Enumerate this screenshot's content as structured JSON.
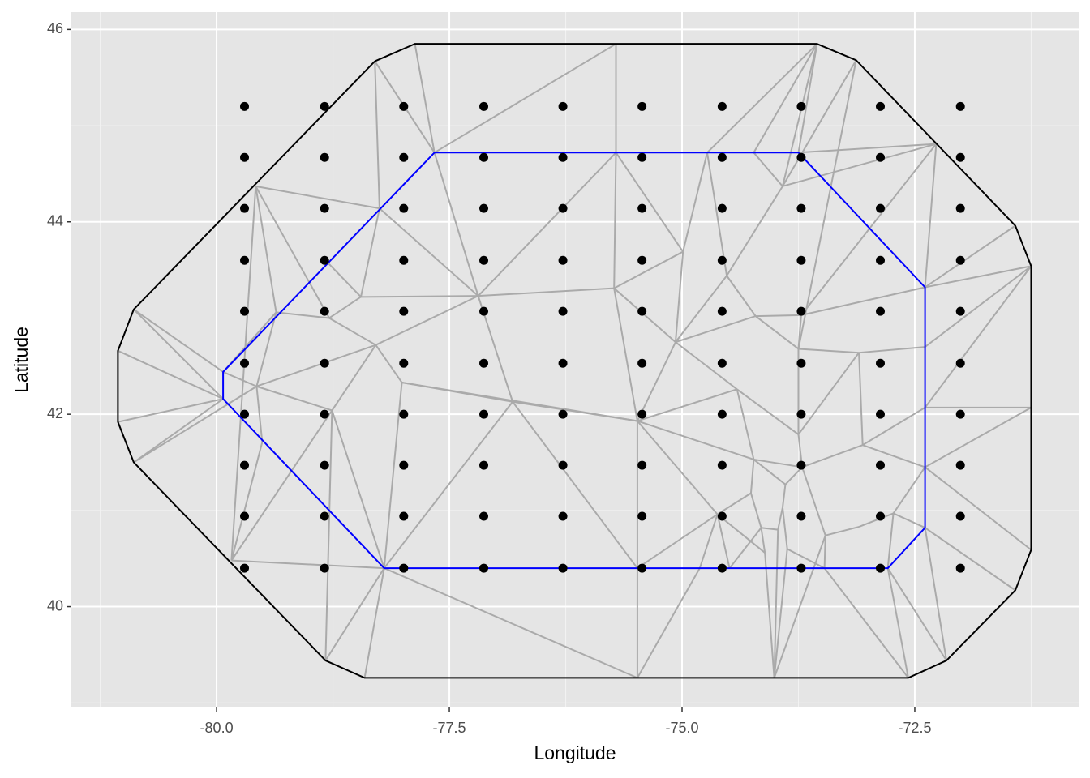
{
  "chart_data": {
    "type": "scatter",
    "x_label": "Longitude",
    "y_label": "Latitude",
    "xlim": [
      -81.56,
      -70.74
    ],
    "ylim": [
      38.96,
      46.18
    ],
    "xticks": [
      {
        "value": -80,
        "label": "-80.0"
      },
      -77.5,
      {
        "value": -75,
        "label": "-75.0"
      },
      -72.5
    ],
    "yticks": [
      40,
      42,
      44,
      46
    ],
    "xminor": [
      -81.25,
      -78.75,
      -76.25,
      -73.75,
      -71.25
    ],
    "yminor": [
      39,
      41,
      43,
      45
    ],
    "grid": true,
    "points": {
      "color": "#000000",
      "x": [
        -79.7,
        -78.84,
        -77.99,
        -77.13,
        -76.28,
        -75.43,
        -74.57,
        -73.72,
        -72.87,
        -72.01,
        -79.7,
        -78.84,
        -77.99,
        -77.13,
        -76.28,
        -75.43,
        -74.57,
        -73.72,
        -72.87,
        -72.01,
        -79.7,
        -78.84,
        -77.99,
        -77.13,
        -76.28,
        -75.43,
        -74.57,
        -73.72,
        -72.87,
        -72.01,
        -79.7,
        -78.84,
        -77.99,
        -77.13,
        -76.28,
        -75.43,
        -74.57,
        -73.72,
        -72.87,
        -72.01,
        -79.7,
        -78.84,
        -77.99,
        -77.13,
        -76.28,
        -75.43,
        -74.57,
        -73.72,
        -72.87,
        -72.01,
        -79.7,
        -78.84,
        -77.99,
        -77.13,
        -76.28,
        -75.43,
        -74.57,
        -73.72,
        -72.87,
        -72.01,
        -79.7,
        -78.84,
        -77.99,
        -77.13,
        -76.28,
        -75.43,
        -74.57,
        -73.72,
        -72.87,
        -72.01,
        -79.7,
        -78.84,
        -77.99,
        -77.13,
        -76.28,
        -75.43,
        -74.57,
        -73.72,
        -72.87,
        -72.01,
        -79.7,
        -78.84,
        -77.99,
        -77.13,
        -76.28,
        -75.43,
        -74.57,
        -73.72,
        -72.87,
        -72.01,
        -79.7,
        -78.84,
        -77.99,
        -77.13,
        -76.28,
        -75.43,
        -74.57,
        -73.72,
        -72.87,
        -72.01
      ],
      "y": [
        45.2,
        45.2,
        45.2,
        45.2,
        45.2,
        45.2,
        45.2,
        45.2,
        45.2,
        45.2,
        44.67,
        44.67,
        44.67,
        44.67,
        44.67,
        44.67,
        44.67,
        44.67,
        44.67,
        44.67,
        44.14,
        44.14,
        44.14,
        44.14,
        44.14,
        44.14,
        44.14,
        44.14,
        44.14,
        44.14,
        43.6,
        43.6,
        43.6,
        43.6,
        43.6,
        43.6,
        43.6,
        43.6,
        43.6,
        43.6,
        43.07,
        43.07,
        43.07,
        43.07,
        43.07,
        43.07,
        43.07,
        43.07,
        43.07,
        43.07,
        42.53,
        42.53,
        42.53,
        42.53,
        42.53,
        42.53,
        42.53,
        42.53,
        42.53,
        42.53,
        42.0,
        42.0,
        42.0,
        42.0,
        42.0,
        42.0,
        42.0,
        42.0,
        42.0,
        42.0,
        41.47,
        41.47,
        41.47,
        41.47,
        41.47,
        41.47,
        41.47,
        41.47,
        41.47,
        41.47,
        40.94,
        40.94,
        40.94,
        40.94,
        40.94,
        40.94,
        40.94,
        40.94,
        40.94,
        40.94,
        40.4,
        40.4,
        40.4,
        40.4,
        40.4,
        40.4,
        40.4,
        40.4,
        40.4,
        40.4
      ]
    },
    "mesh": {
      "color": "#aaaaaa",
      "x": [
        -78.3,
        -77.87,
        -73.55,
        -73.13,
        -71.42,
        -71.25,
        -71.25,
        -71.42,
        -72.16,
        -72.57,
        -78.41,
        -78.83,
        -80.89,
        -81.06,
        -81.06,
        -80.89,
        -77.66,
        -73.75,
        -72.39,
        -72.39,
        -72.79,
        -78.2,
        -79.93,
        -79.93,
        -75.71,
        -75.48,
        -74.01,
        -71.25,
        -72.27,
        -79.84,
        -79.58,
        -75.71,
        -75.48,
        -74.81,
        -73.47,
        -72.39,
        -72.39,
        -72.39,
        -78.25,
        -78.84,
        -79.36,
        -79.51,
        -74.49,
        -77.19,
        -75.73,
        -74.99,
        -75.07,
        -76.82,
        -75.48,
        -78.45,
        -78.29,
        -78.79,
        -79.57,
        -78.76,
        -78.01,
        -73.92,
        -74.23,
        -74.73,
        -74.52,
        -74.21,
        -73.75,
        -73.1,
        -73.72,
        -74.41,
        -73.75,
        -73.06,
        -74.23,
        -73.89,
        -74.26,
        -73.71,
        -73.46,
        -73.1,
        -72.73,
        -74.62,
        -73.92,
        -73.97,
        -74.15,
        -73.87,
        -74.11
      ],
      "y": [
        45.67,
        45.85,
        45.85,
        45.68,
        43.96,
        43.54,
        40.59,
        40.17,
        39.44,
        39.26,
        39.26,
        39.44,
        41.5,
        41.92,
        42.66,
        43.09,
        44.72,
        44.72,
        43.32,
        40.82,
        40.4,
        40.4,
        42.16,
        42.44,
        45.85,
        39.26,
        39.26,
        42.07,
        44.81,
        40.48,
        44.37,
        44.72,
        40.4,
        40.4,
        40.4,
        42.07,
        41.45,
        42.7,
        44.14,
        43.61,
        43.06,
        41.71,
        40.4,
        43.23,
        43.31,
        43.69,
        42.75,
        42.13,
        41.93,
        43.22,
        42.72,
        43.0,
        42.29,
        42.04,
        42.33,
        44.37,
        44.72,
        44.72,
        43.44,
        43.02,
        42.68,
        42.64,
        43.03,
        42.26,
        41.79,
        41.68,
        41.53,
        41.27,
        41.18,
        41.45,
        40.74,
        40.83,
        40.97,
        40.96,
        41.03,
        40.8,
        40.82,
        40.6,
        40.56
      ],
      "edges": [
        [
          0,
          16
        ],
        [
          1,
          16
        ],
        [
          16,
          24
        ],
        [
          24,
          31
        ],
        [
          31,
          44
        ],
        [
          2,
          57
        ],
        [
          2,
          56
        ],
        [
          2,
          55
        ],
        [
          2,
          17
        ],
        [
          3,
          55
        ],
        [
          3,
          60
        ],
        [
          28,
          17
        ],
        [
          28,
          55
        ],
        [
          28,
          18
        ],
        [
          28,
          62
        ],
        [
          0,
          38
        ],
        [
          30,
          38
        ],
        [
          30,
          51
        ],
        [
          30,
          40
        ],
        [
          30,
          29
        ],
        [
          38,
          49
        ],
        [
          39,
          49
        ],
        [
          49,
          51
        ],
        [
          51,
          40
        ],
        [
          51,
          50
        ],
        [
          49,
          43
        ],
        [
          43,
          16
        ],
        [
          43,
          38
        ],
        [
          43,
          31
        ],
        [
          43,
          44
        ],
        [
          43,
          47
        ],
        [
          43,
          50
        ],
        [
          50,
          54
        ],
        [
          54,
          47
        ],
        [
          54,
          21
        ],
        [
          54,
          48
        ],
        [
          47,
          21
        ],
        [
          47,
          32
        ],
        [
          47,
          48
        ],
        [
          31,
          45
        ],
        [
          45,
          57
        ],
        [
          45,
          44
        ],
        [
          45,
          46
        ],
        [
          44,
          46
        ],
        [
          44,
          48
        ],
        [
          46,
          48
        ],
        [
          46,
          58
        ],
        [
          46,
          63
        ],
        [
          46,
          59
        ],
        [
          58,
          55
        ],
        [
          58,
          59
        ],
        [
          59,
          62
        ],
        [
          59,
          60
        ],
        [
          60,
          62
        ],
        [
          60,
          61
        ],
        [
          62,
          18
        ],
        [
          61,
          37
        ],
        [
          61,
          65
        ],
        [
          65,
          35
        ],
        [
          65,
          36
        ],
        [
          65,
          69
        ],
        [
          64,
          60
        ],
        [
          64,
          69
        ],
        [
          64,
          61
        ],
        [
          64,
          63
        ],
        [
          63,
          48
        ],
        [
          63,
          66
        ],
        [
          66,
          48
        ],
        [
          66,
          69
        ],
        [
          66,
          68
        ],
        [
          66,
          67
        ],
        [
          67,
          69
        ],
        [
          67,
          74
        ],
        [
          68,
          73
        ],
        [
          68,
          76
        ],
        [
          73,
          48
        ],
        [
          73,
          32
        ],
        [
          73,
          42
        ],
        [
          73,
          78
        ],
        [
          69,
          70
        ],
        [
          70,
          71
        ],
        [
          71,
          72
        ],
        [
          72,
          20
        ],
        [
          72,
          36
        ],
        [
          72,
          19
        ],
        [
          70,
          34
        ],
        [
          70,
          26
        ],
        [
          20,
          9
        ],
        [
          19,
          8
        ],
        [
          19,
          7
        ],
        [
          36,
          6
        ],
        [
          35,
          27
        ],
        [
          35,
          5
        ],
        [
          37,
          5
        ],
        [
          18,
          4
        ],
        [
          18,
          5
        ],
        [
          27,
          36
        ],
        [
          15,
          23
        ],
        [
          15,
          22
        ],
        [
          14,
          22
        ],
        [
          13,
          22
        ],
        [
          12,
          22
        ],
        [
          12,
          52
        ],
        [
          23,
          52
        ],
        [
          52,
          53
        ],
        [
          52,
          41
        ],
        [
          41,
          29
        ],
        [
          29,
          21
        ],
        [
          29,
          53
        ],
        [
          53,
          11
        ],
        [
          53,
          21
        ],
        [
          53,
          50
        ],
        [
          52,
          50
        ],
        [
          23,
          40
        ],
        [
          40,
          52
        ],
        [
          21,
          11
        ],
        [
          21,
          10
        ],
        [
          21,
          25
        ],
        [
          32,
          25
        ],
        [
          32,
          48
        ],
        [
          33,
          25
        ],
        [
          33,
          73
        ],
        [
          26,
          78
        ],
        [
          26,
          77
        ],
        [
          26,
          75
        ],
        [
          34,
          9
        ],
        [
          20,
          8
        ],
        [
          34,
          77
        ],
        [
          74,
          75
        ],
        [
          75,
          76
        ],
        [
          76,
          78
        ],
        [
          77,
          74
        ],
        [
          42,
          76
        ],
        [
          56,
          55
        ],
        [
          57,
          58
        ]
      ]
    },
    "boundaries": [
      {
        "color": "#000000",
        "nodes": [
          0,
          1,
          2,
          3,
          4,
          5,
          6,
          7,
          8,
          9,
          10,
          11,
          12,
          13,
          14,
          15
        ]
      },
      {
        "color": "#0000ff",
        "nodes": [
          16,
          17,
          18,
          19,
          20,
          21,
          22,
          23
        ]
      }
    ]
  }
}
